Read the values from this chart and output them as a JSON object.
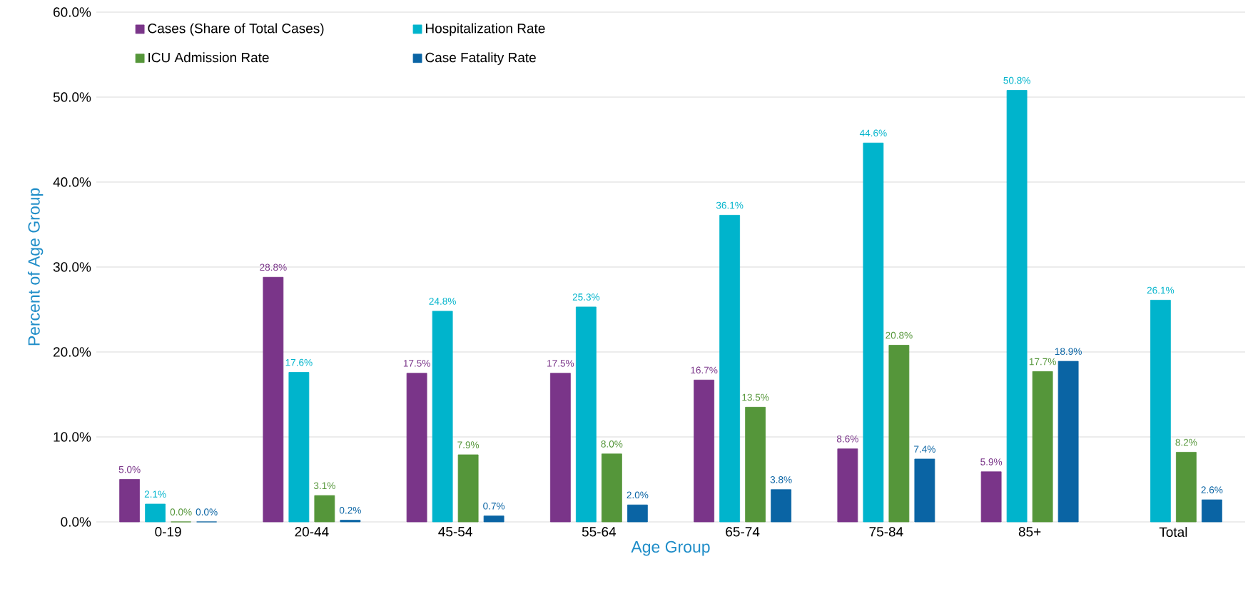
{
  "chart_data": {
    "type": "bar",
    "xlabel": "Age Group",
    "ylabel": "Percent of Age Group",
    "categories": [
      "0-19",
      "20-44",
      "45-54",
      "55-64",
      "65-74",
      "75-84",
      "85+",
      "Total"
    ],
    "series": [
      {
        "name": "Cases (Share of Total Cases)",
        "color": "#7a3589",
        "values": [
          5.0,
          28.8,
          17.5,
          17.5,
          16.7,
          8.6,
          5.9,
          null
        ],
        "value_labels": [
          "5.0%",
          "28.8%",
          "17.5%",
          "17.5%",
          "16.7%",
          "8.6%",
          "5.9%",
          null
        ]
      },
      {
        "name": "Hospitalization Rate",
        "color": "#00b4cc",
        "values": [
          2.1,
          17.6,
          24.8,
          25.3,
          36.1,
          44.6,
          50.8,
          26.1
        ],
        "value_labels": [
          "2.1%",
          "17.6%",
          "24.8%",
          "25.3%",
          "36.1%",
          "44.6%",
          "50.8%",
          "26.1%"
        ]
      },
      {
        "name": "ICU Admission Rate",
        "color": "#55963a",
        "values": [
          0.0,
          3.1,
          7.9,
          8.0,
          13.5,
          20.8,
          17.7,
          8.2
        ],
        "value_labels": [
          "0.0%",
          "3.1%",
          "7.9%",
          "8.0%",
          "13.5%",
          "20.8%",
          "17.7%",
          "8.2%"
        ]
      },
      {
        "name": "Case Fatality Rate",
        "color": "#0a64a4",
        "values": [
          0.0,
          0.2,
          0.7,
          2.0,
          3.8,
          7.4,
          18.9,
          2.6
        ],
        "value_labels": [
          "0.0%",
          "0.2%",
          "0.7%",
          "2.0%",
          "3.8%",
          "7.4%",
          "18.9%",
          "2.6%"
        ]
      }
    ],
    "ylim": [
      0,
      60
    ],
    "yticks": [
      {
        "value": 0,
        "label": "0.0%"
      },
      {
        "value": 10,
        "label": "10.0%"
      },
      {
        "value": 20,
        "label": "20.0%"
      },
      {
        "value": 30,
        "label": "30.0%"
      },
      {
        "value": 40,
        "label": "40.0%"
      },
      {
        "value": 50,
        "label": "50.0%"
      },
      {
        "value": 60,
        "label": "60.0%"
      }
    ],
    "grid": "y",
    "legend": "top left"
  }
}
